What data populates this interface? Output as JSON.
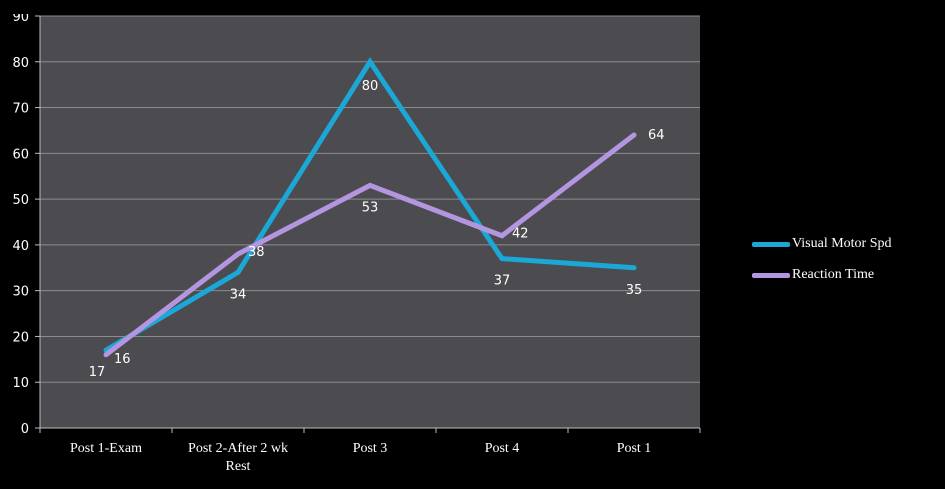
{
  "chart_data": {
    "type": "line",
    "categories": [
      "Post 1-Exam",
      "Post 2-After 2 wk Rest",
      "Post 3",
      "Post 4",
      "Post 1"
    ],
    "series": [
      {
        "name": "Visual Motor Spd",
        "values": [
          17,
          34,
          80,
          37,
          35
        ],
        "color": "#1ba8d6"
      },
      {
        "name": "Reaction Time",
        "values": [
          16,
          38,
          53,
          42,
          64
        ],
        "color": "#b496e0"
      }
    ],
    "ylim": [
      0,
      90
    ],
    "yticks": [
      "0",
      "10",
      "20",
      "30",
      "40",
      "50",
      "60",
      "70",
      "80",
      "90"
    ],
    "grid": true,
    "legend_position": "right",
    "plot_background": "#4b4b50"
  }
}
